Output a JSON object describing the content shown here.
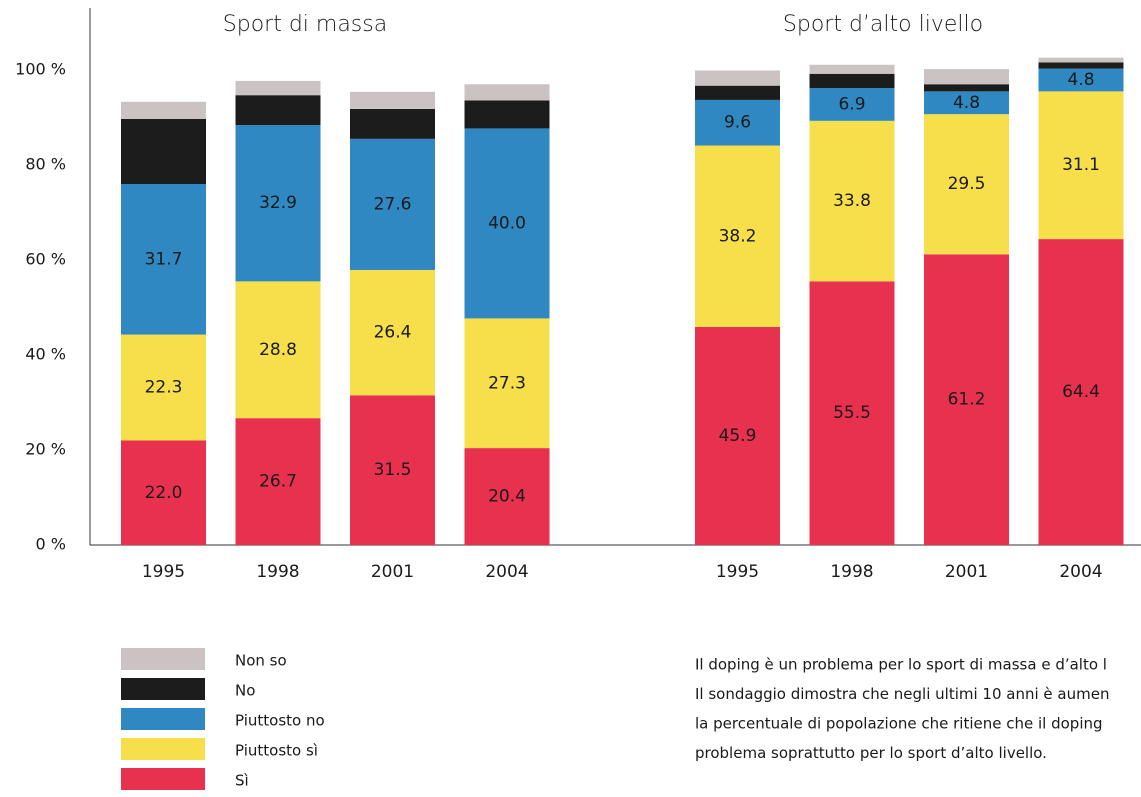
{
  "chart_data": [
    {
      "type": "bar",
      "stacked": true,
      "title": "Sport di massa",
      "categories": [
        "1995",
        "1998",
        "2001",
        "2004"
      ],
      "ylim": [
        0,
        100
      ],
      "yticks": [
        {
          "value": 0,
          "label": "0 %"
        },
        {
          "value": 20,
          "label": "20 %"
        },
        {
          "value": 40,
          "label": "40 %"
        },
        {
          "value": 60,
          "label": "60 %"
        },
        {
          "value": 80,
          "label": "80 %"
        },
        {
          "value": 100,
          "label": "100 %"
        }
      ],
      "series": [
        {
          "name": "Sì",
          "color": "#e8304f",
          "values": [
            22.0,
            26.7,
            31.5,
            20.4
          ],
          "value_labels": [
            "22.0",
            "26.7",
            "31.5",
            "20.4"
          ]
        },
        {
          "name": "Piuttosto sì",
          "color": "#f6df4a",
          "values": [
            22.3,
            28.8,
            26.4,
            27.3
          ],
          "value_labels": [
            "22.3",
            "28.8",
            "26.4",
            "27.3"
          ]
        },
        {
          "name": "Piuttosto no",
          "color": "#2f88c2",
          "values": [
            31.7,
            32.9,
            27.6,
            40.0
          ],
          "value_labels": [
            "31.7",
            "32.9",
            "27.6",
            "40.0"
          ]
        },
        {
          "name": "No",
          "color": "#1c1c1c",
          "values": [
            13.7,
            6.3,
            6.3,
            5.9
          ]
        },
        {
          "name": "Non so",
          "color": "#cbc3c3",
          "values": [
            3.6,
            3.0,
            3.6,
            3.4
          ]
        }
      ]
    },
    {
      "type": "bar",
      "stacked": true,
      "title": "Sport d’alto livello",
      "categories": [
        "1995",
        "1998",
        "2001",
        "2004"
      ],
      "ylim": [
        0,
        100
      ],
      "series": [
        {
          "name": "Sì",
          "color": "#e8304f",
          "values": [
            45.9,
            55.5,
            61.2,
            64.4
          ],
          "value_labels": [
            "45.9",
            "55.5",
            "61.2",
            "64.4"
          ]
        },
        {
          "name": "Piuttosto sì",
          "color": "#f6df4a",
          "values": [
            38.2,
            33.8,
            29.5,
            31.1
          ],
          "value_labels": [
            "38.2",
            "33.8",
            "29.5",
            "31.1"
          ]
        },
        {
          "name": "Piuttosto no",
          "color": "#2f88c2",
          "values": [
            9.6,
            6.9,
            4.8,
            4.8
          ],
          "value_labels": [
            "9.6",
            "6.9",
            "4.8",
            "4.8"
          ]
        },
        {
          "name": "No",
          "color": "#1c1c1c",
          "values": [
            3.0,
            3.0,
            1.5,
            1.3
          ]
        },
        {
          "name": "Non so",
          "color": "#cbc3c3",
          "values": [
            3.2,
            1.9,
            3.2,
            1.0
          ]
        }
      ]
    }
  ],
  "note": [
    "Il doping è un problema per lo sport di massa e d’alto l",
    "Il sondaggio dimostra che negli ultimi 10 anni è aumen",
    "la percentuale di popolazione che ritiene che il doping",
    "problema soprattutto per lo sport d’alto livello."
  ]
}
